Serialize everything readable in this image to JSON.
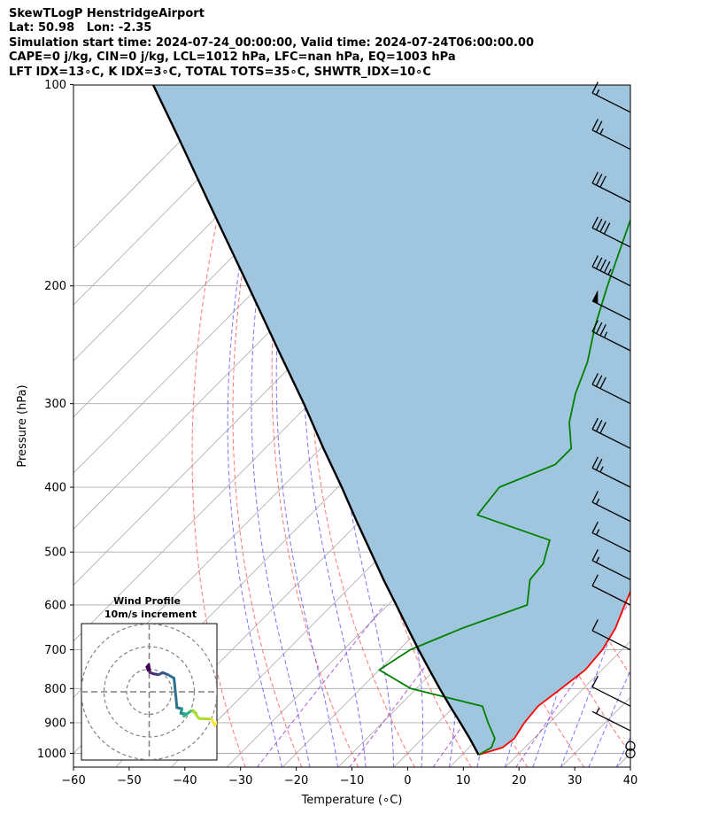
{
  "header": {
    "line1": "SkewTLogP HenstridgeAirport",
    "line2": "Lat: 50.98   Lon: -2.35",
    "line3": "Simulation start time: 2024-07-24_00:00:00, Valid time: 2024-07-24T06:00:00.00",
    "line4": "CAPE=0 j/kg, CIN=0 j/kg, LCL=1012 hPa, LFC=nan hPa, EQ=1003 hPa",
    "line5": "LFT IDX=13∘C, K IDX=3∘C, TOTAL TOTS=35∘C, SHWTR_IDX=10∘C"
  },
  "chart_data": {
    "type": "line",
    "xlabel": "Temperature (∘C)",
    "ylabel": "Pressure (hPa)",
    "xlim": [
      -60,
      40
    ],
    "ylim": [
      1050,
      100
    ],
    "x_scale": "skew-T",
    "y_scale": "log",
    "grid": true,
    "x_ticks": [
      "−60",
      "−50",
      "−40",
      "−30",
      "−20",
      "−10",
      "0",
      "10",
      "20",
      "30",
      "40"
    ],
    "x_tick_values": [
      -60,
      -50,
      -40,
      -30,
      -20,
      -10,
      0,
      10,
      20,
      30,
      40
    ],
    "y_ticks": [
      "100",
      "200",
      "300",
      "400",
      "500",
      "600",
      "700",
      "800",
      "900",
      "1000"
    ],
    "y_tick_values": [
      100,
      200,
      300,
      400,
      500,
      600,
      700,
      800,
      900,
      1000
    ],
    "colors": {
      "temperature": "#ff0000",
      "dewpoint": "#008000",
      "parcel": "#000000",
      "shading": "#a0c6df",
      "dry_adiabat": "#ff6666",
      "moist_adiabat": "#6666ff",
      "mixing_ratio": "#9933cc",
      "isotherm": "#aaaaaa"
    },
    "series": [
      {
        "key": "temperature",
        "points": [
          [
            1005,
            13
          ],
          [
            980,
            16
          ],
          [
            950,
            16.5
          ],
          [
            900,
            15.5
          ],
          [
            850,
            15
          ],
          [
            800,
            16
          ],
          [
            750,
            17
          ],
          [
            700,
            16.5
          ],
          [
            650,
            15
          ],
          [
            600,
            12.5
          ],
          [
            550,
            10
          ],
          [
            500,
            6.5
          ],
          [
            450,
            3
          ],
          [
            400,
            -2
          ],
          [
            350,
            -7
          ],
          [
            300,
            -13
          ],
          [
            250,
            -20
          ],
          [
            220,
            -26.5
          ],
          [
            200,
            -31
          ],
          [
            180,
            -35
          ],
          [
            160,
            -40
          ],
          [
            140,
            -45
          ],
          [
            120,
            -51
          ],
          [
            100,
            -57
          ]
        ]
      },
      {
        "key": "dewpoint",
        "points": [
          [
            1005,
            13
          ],
          [
            980,
            14
          ],
          [
            950,
            13
          ],
          [
            900,
            9
          ],
          [
            850,
            5
          ],
          [
            800,
            -11
          ],
          [
            750,
            -20
          ],
          [
            700,
            -18
          ],
          [
            650,
            -12.5
          ],
          [
            600,
            -5
          ],
          [
            550,
            -9
          ],
          [
            520,
            -9.5
          ],
          [
            500,
            -11
          ],
          [
            480,
            -12.5
          ],
          [
            440,
            -30
          ],
          [
            400,
            -31
          ],
          [
            370,
            -25
          ],
          [
            350,
            -25
          ],
          [
            320,
            -30
          ],
          [
            290,
            -34
          ],
          [
            260,
            -37.5
          ],
          [
            230,
            -42.5
          ],
          [
            200,
            -47.5
          ],
          [
            175,
            -52
          ],
          [
            160,
            -55
          ],
          [
            145,
            -58
          ],
          [
            130,
            -64
          ],
          [
            110,
            -64
          ],
          [
            100,
            -64
          ]
        ]
      },
      {
        "key": "parcel",
        "points": [
          [
            1005,
            13
          ],
          [
            950,
            8.5
          ],
          [
            900,
            4
          ],
          [
            850,
            -0.8
          ],
          [
            800,
            -5.8
          ],
          [
            750,
            -11
          ],
          [
            700,
            -16.5
          ],
          [
            650,
            -22.3
          ],
          [
            600,
            -28.5
          ],
          [
            550,
            -35.3
          ],
          [
            500,
            -42.5
          ],
          [
            450,
            -50.5
          ],
          [
            400,
            -59.3
          ],
          [
            350,
            -69.5
          ],
          [
            300,
            -81
          ],
          [
            250,
            -95
          ],
          [
            200,
            -112
          ],
          [
            150,
            -134
          ],
          [
            120,
            -151
          ],
          [
            100,
            -165
          ]
        ]
      }
    ],
    "wind_barbs": [
      {
        "p": 1000,
        "speed_kt": 0
      },
      {
        "p": 975,
        "speed_kt": 0
      },
      {
        "p": 925,
        "speed_kt": 5
      },
      {
        "p": 850,
        "speed_kt": 10
      },
      {
        "p": 700,
        "speed_kt": 10
      },
      {
        "p": 600,
        "speed_kt": 10
      },
      {
        "p": 550,
        "speed_kt": 15
      },
      {
        "p": 500,
        "speed_kt": 15
      },
      {
        "p": 450,
        "speed_kt": 15
      },
      {
        "p": 400,
        "speed_kt": 25
      },
      {
        "p": 350,
        "speed_kt": 30
      },
      {
        "p": 300,
        "speed_kt": 30
      },
      {
        "p": 250,
        "speed_kt": 35
      },
      {
        "p": 225,
        "speed_kt": 50
      },
      {
        "p": 200,
        "speed_kt": 45
      },
      {
        "p": 175,
        "speed_kt": 40
      },
      {
        "p": 150,
        "speed_kt": 30
      },
      {
        "p": 125,
        "speed_kt": 25
      },
      {
        "p": 110,
        "speed_kt": 15
      }
    ],
    "inset": {
      "title": "Wind Profile",
      "subtitle": "10m/s increment",
      "type": "hodograph",
      "rings_ms": [
        10,
        20,
        30
      ],
      "colormap": "viridis",
      "trace": [
        [
          -0.5,
          9.5
        ],
        [
          -1,
          11
        ],
        [
          -0.2,
          12
        ],
        [
          0.3,
          8.6
        ],
        [
          1.8,
          8
        ],
        [
          4.2,
          7.6
        ],
        [
          6,
          8.5
        ],
        [
          8.5,
          7.5
        ],
        [
          11,
          6
        ],
        [
          12.3,
          -7
        ],
        [
          14.5,
          -7.5
        ],
        [
          14,
          -9.5
        ],
        [
          15.8,
          -9.7
        ],
        [
          15.4,
          -10.7
        ],
        [
          18.6,
          -8.4
        ],
        [
          19.9,
          -8.8
        ],
        [
          20.8,
          -9.7
        ],
        [
          19.4,
          -8.2
        ],
        [
          22,
          -11.8
        ],
        [
          27.7,
          -12.1
        ],
        [
          29,
          -14.8
        ],
        [
          31.2,
          -12.6
        ]
      ]
    }
  }
}
